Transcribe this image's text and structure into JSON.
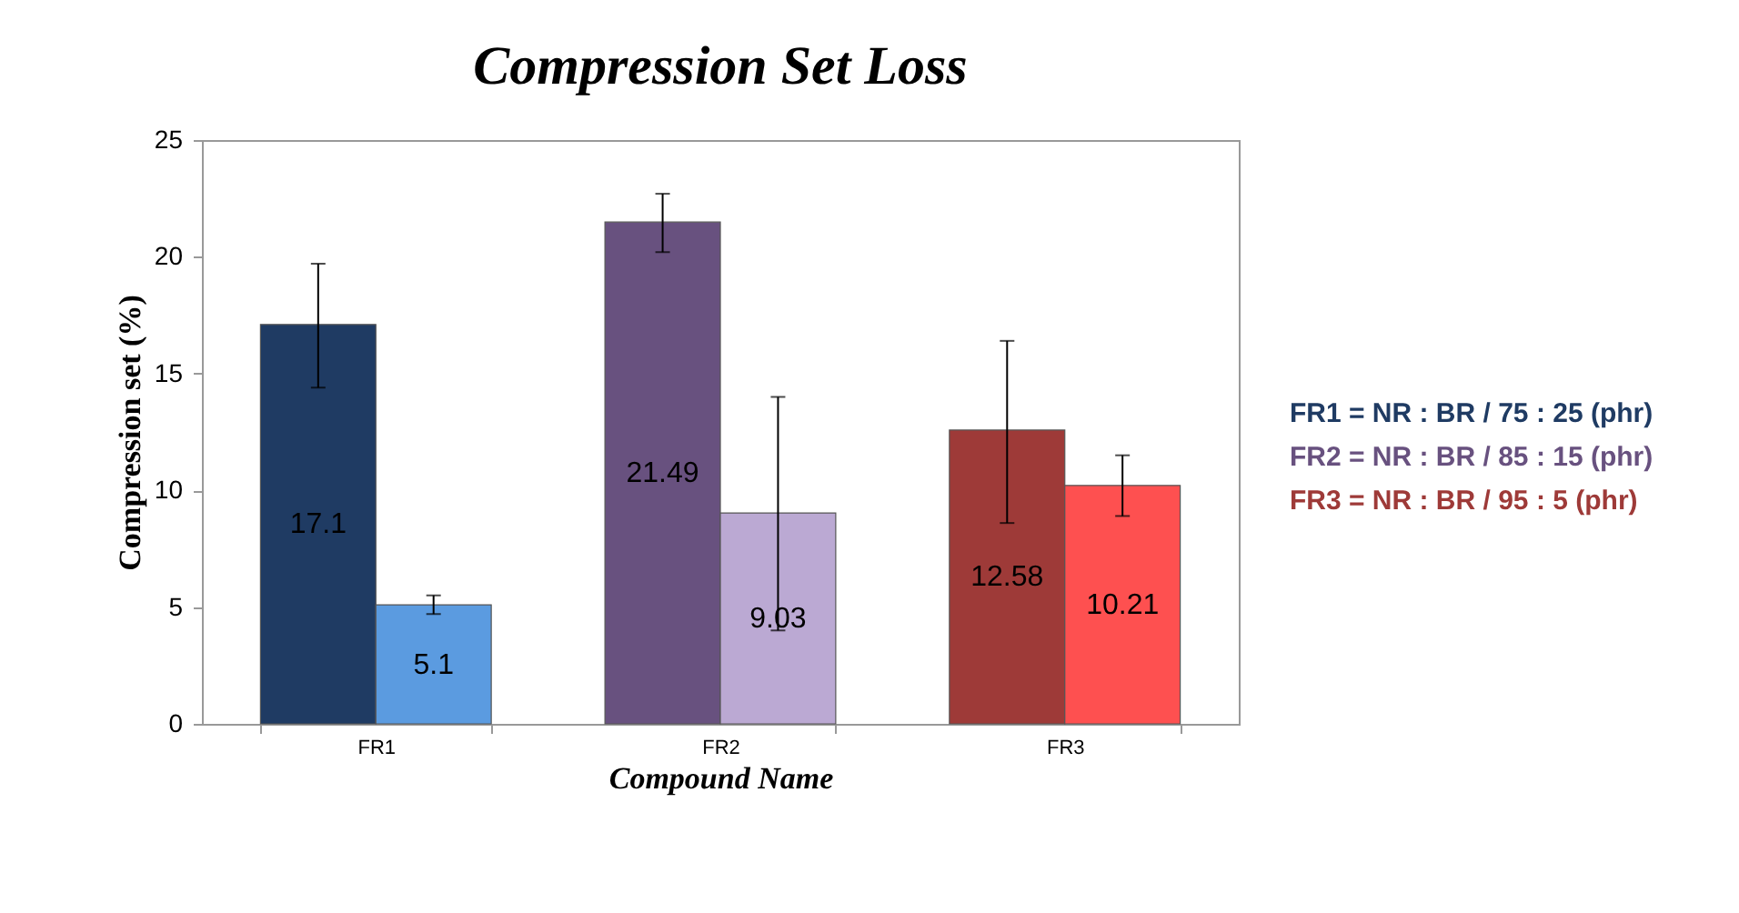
{
  "chart_data": {
    "type": "bar",
    "title": "Compression Set Loss",
    "xlabel": "Compound Name",
    "ylabel": "Compression set (%)",
    "categories": [
      "FR1",
      "FR2",
      "FR3"
    ],
    "series": [
      {
        "colors": [
          "#1f3b63",
          "#68517f",
          "#9e3a38"
        ],
        "values": [
          17.1,
          21.49,
          12.58
        ],
        "errors": [
          [
            14.4,
            19.7
          ],
          [
            20.2,
            22.7
          ],
          [
            8.6,
            16.4
          ]
        ]
      },
      {
        "colors": [
          "#5b9be0",
          "#bba9d3",
          "#fe5050"
        ],
        "values": [
          5.1,
          9.03,
          10.21
        ],
        "errors": [
          [
            4.7,
            5.5
          ],
          [
            4.0,
            14.0
          ],
          [
            8.9,
            11.5
          ]
        ]
      }
    ],
    "ylim": [
      0,
      25
    ],
    "yticks": [
      0,
      5,
      10,
      15,
      20,
      25
    ],
    "grid": false,
    "data_labels": true,
    "annotations": [
      "FR1 = NR : BR / 75 : 25 (phr)",
      "FR2 = NR : BR / 85 : 15 (phr)",
      "FR3 = NR : BR / 95 : 5   (phr)"
    ]
  }
}
